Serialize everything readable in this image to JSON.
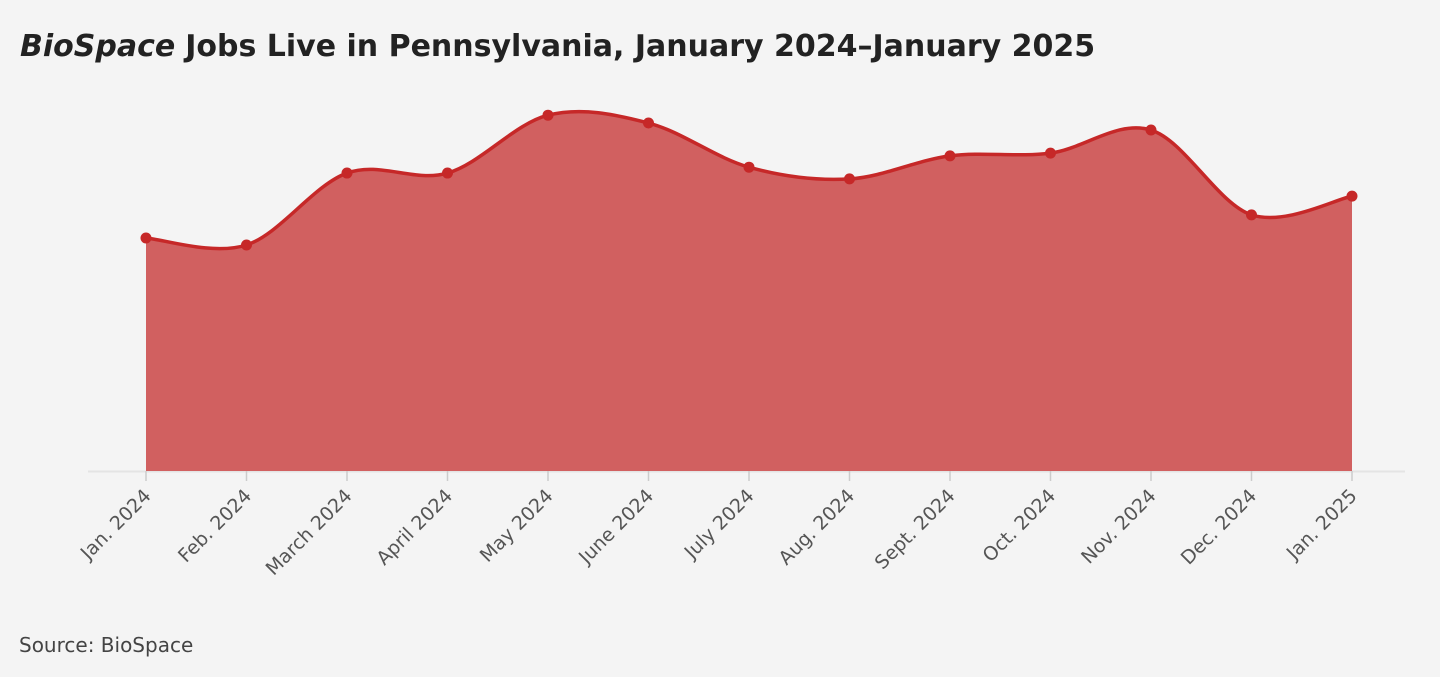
{
  "chart_data": {
    "type": "area",
    "title_emphasis": "BioSpace",
    "title": "Jobs Live in Pennsylvania, January 2024–January 2025",
    "source": "Source: BioSpace",
    "categories": [
      "Jan. 2024",
      "Feb. 2024",
      "March 2024",
      "April 2024",
      "May 2024",
      "June 2024",
      "July 2024",
      "Aug. 2024",
      "Sept. 2024",
      "Oct. 2024",
      "Nov. 2024",
      "Dec. 2024",
      "Jan. 2025"
    ],
    "values": [
      59.6,
      57.8,
      76.2,
      76.2,
      91.0,
      89.0,
      77.7,
      74.7,
      80.6,
      81.3,
      87.2,
      65.5,
      70.3
    ],
    "color": "#c62828",
    "fill": "#d16060",
    "ylim": [
      0,
      100
    ]
  }
}
